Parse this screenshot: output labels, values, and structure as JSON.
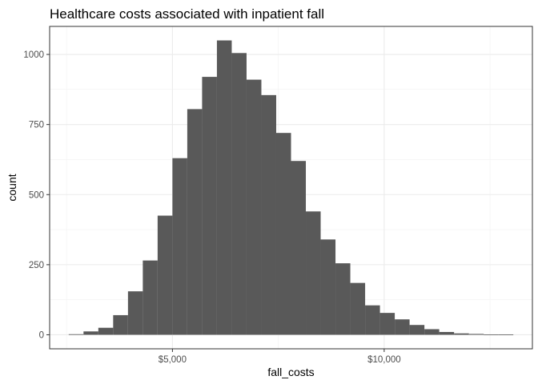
{
  "chart_data": {
    "type": "bar",
    "title": "Healthcare costs associated with inpatient fall",
    "xlabel": "fall_costs",
    "ylabel": "count",
    "xlim": [
      2100,
      13500
    ],
    "ylim": [
      -50,
      1100
    ],
    "x_ticks": [
      5000,
      10000
    ],
    "x_tick_labels": [
      "$5,000",
      "$10,000"
    ],
    "y_ticks": [
      0,
      250,
      500,
      750,
      1000
    ],
    "y_tick_labels": [
      "0",
      "250",
      "500",
      "750",
      "1000"
    ],
    "grid": true,
    "legend": "none",
    "bar_color": "#595959",
    "bins": [
      {
        "x0": 2550,
        "x1": 2900,
        "count": 2
      },
      {
        "x0": 2900,
        "x1": 3250,
        "count": 12
      },
      {
        "x0": 3250,
        "x1": 3600,
        "count": 25
      },
      {
        "x0": 3600,
        "x1": 3950,
        "count": 70
      },
      {
        "x0": 3950,
        "x1": 4300,
        "count": 155
      },
      {
        "x0": 4300,
        "x1": 4650,
        "count": 265
      },
      {
        "x0": 4650,
        "x1": 5000,
        "count": 425
      },
      {
        "x0": 5000,
        "x1": 5350,
        "count": 630
      },
      {
        "x0": 5350,
        "x1": 5700,
        "count": 805
      },
      {
        "x0": 5700,
        "x1": 6050,
        "count": 920
      },
      {
        "x0": 6050,
        "x1": 6400,
        "count": 1050
      },
      {
        "x0": 6400,
        "x1": 6750,
        "count": 1005
      },
      {
        "x0": 6750,
        "x1": 7100,
        "count": 910
      },
      {
        "x0": 7100,
        "x1": 7450,
        "count": 855
      },
      {
        "x0": 7450,
        "x1": 7800,
        "count": 720
      },
      {
        "x0": 7800,
        "x1": 8150,
        "count": 620
      },
      {
        "x0": 8150,
        "x1": 8500,
        "count": 440
      },
      {
        "x0": 8500,
        "x1": 8850,
        "count": 340
      },
      {
        "x0": 8850,
        "x1": 9200,
        "count": 255
      },
      {
        "x0": 9200,
        "x1": 9550,
        "count": 185
      },
      {
        "x0": 9550,
        "x1": 9900,
        "count": 105
      },
      {
        "x0": 9900,
        "x1": 10250,
        "count": 78
      },
      {
        "x0": 10250,
        "x1": 10600,
        "count": 55
      },
      {
        "x0": 10600,
        "x1": 10950,
        "count": 35
      },
      {
        "x0": 10950,
        "x1": 11300,
        "count": 20
      },
      {
        "x0": 11300,
        "x1": 11650,
        "count": 10
      },
      {
        "x0": 11650,
        "x1": 12000,
        "count": 5
      },
      {
        "x0": 12000,
        "x1": 12350,
        "count": 3
      },
      {
        "x0": 12350,
        "x1": 12700,
        "count": 1
      },
      {
        "x0": 12700,
        "x1": 13050,
        "count": 1
      }
    ]
  }
}
